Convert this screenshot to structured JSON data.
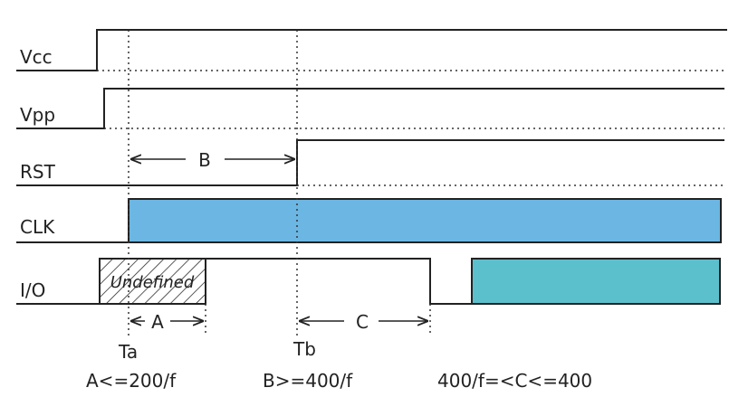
{
  "signals": [
    {
      "label": "Vcc"
    },
    {
      "label": "Vpp"
    },
    {
      "label": "RST"
    },
    {
      "label": "CLK"
    },
    {
      "label": "I/O"
    }
  ],
  "undefined_label": "Undefined",
  "intervals": [
    {
      "label": "B"
    },
    {
      "label": "A"
    },
    {
      "label": "C"
    }
  ],
  "time_points": [
    {
      "label": "Ta"
    },
    {
      "label": "Tb"
    }
  ],
  "conditions": [
    "A<=200/f",
    "B>=400/f",
    "400/f=<C<=400"
  ]
}
